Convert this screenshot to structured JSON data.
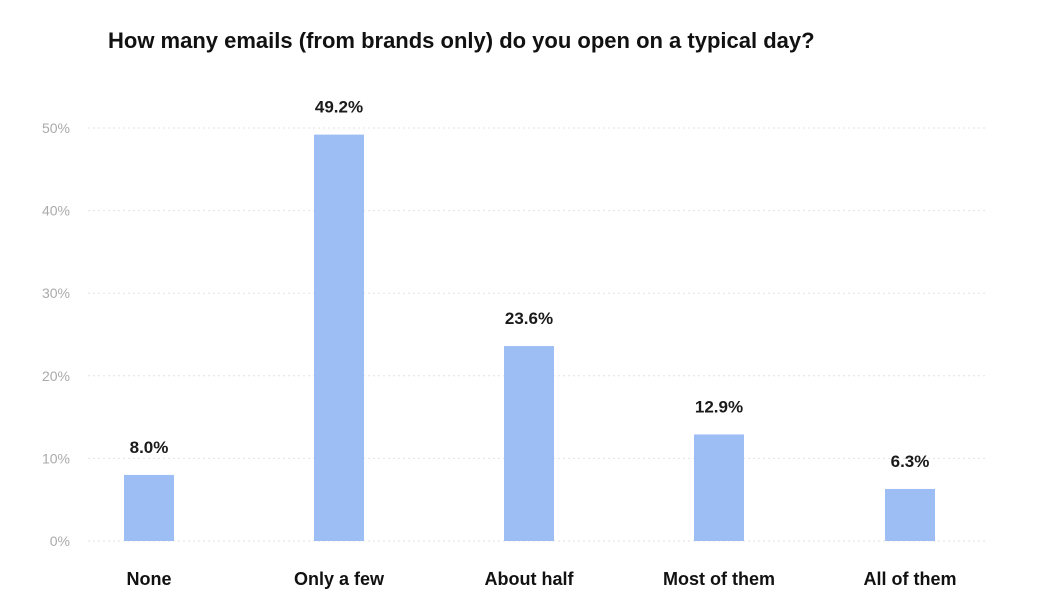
{
  "chart_data": {
    "type": "bar",
    "title": "How many emails (from brands only) do you open on a typical day?",
    "categories": [
      "None",
      "Only a few",
      "About half",
      "Most of them",
      "All of them"
    ],
    "values": [
      8.0,
      49.2,
      23.6,
      12.9,
      6.3
    ],
    "data_labels": [
      "8.0%",
      "49.2%",
      "23.6%",
      "12.9%",
      "6.3%"
    ],
    "yticks": [
      0,
      10,
      20,
      30,
      40,
      50
    ],
    "ytick_labels": [
      "0%",
      "10%",
      "20%",
      "30%",
      "40%",
      "50%"
    ],
    "ylim": [
      0,
      50
    ],
    "xlabel": "",
    "ylabel": "",
    "grid": true,
    "bar_color": "#9dbef5"
  }
}
